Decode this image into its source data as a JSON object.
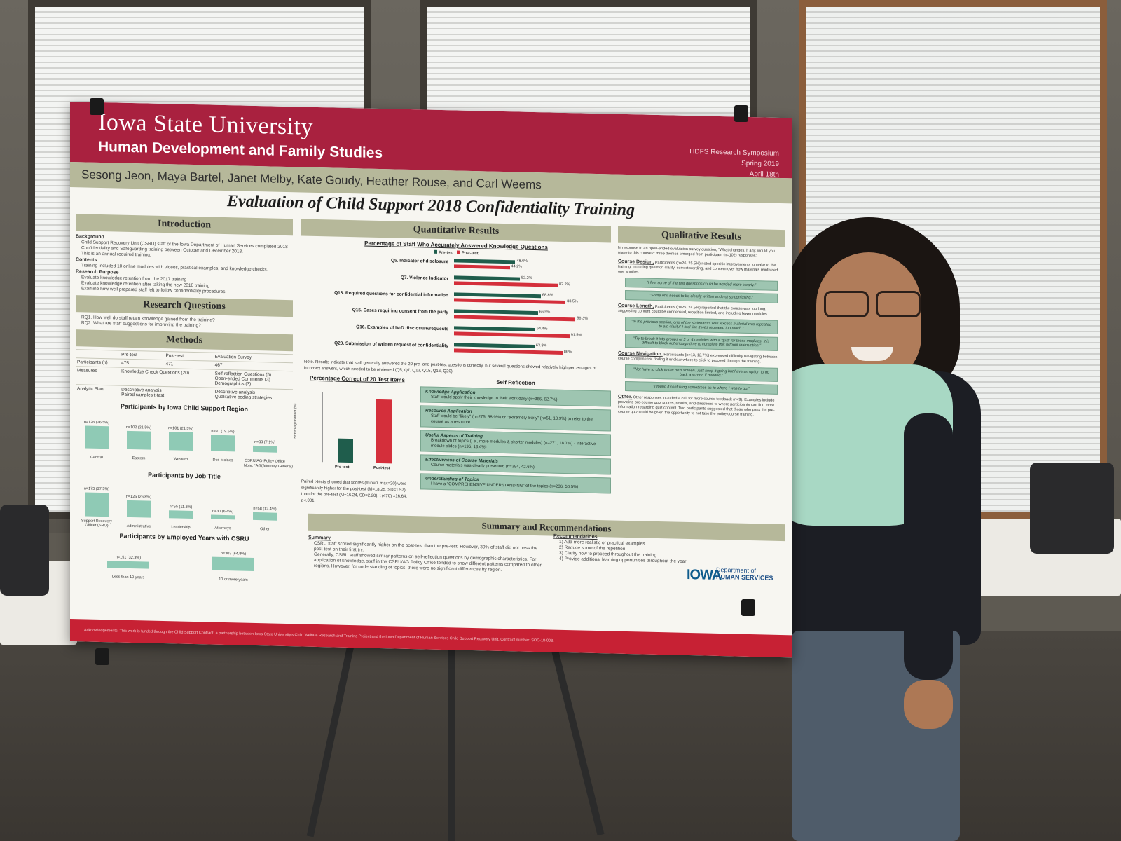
{
  "poster": {
    "university": "Iowa State University",
    "department": "Human Development and Family Studies",
    "event": [
      "HDFS Research Symposium",
      "Spring 2019",
      "April 18th"
    ],
    "authors": "Sesong Jeon, Maya Bartel, Janet Melby, Kate Goudy, Heather Rouse, and Carl Weems",
    "title": "Evaluation of Child Support 2018 Confidentiality Training",
    "introduction": {
      "heading": "Introduction",
      "background_label": "Background",
      "background": [
        "Child Support Recovery Unit (CSRU) staff of the Iowa Department of Human Services completed 2018 Confidentiality and Safeguarding training between October and December 2018.",
        "This is an annual required training."
      ],
      "contents_label": "Contents",
      "contents": [
        "Training included 10 online modules with videos, practical examples, and knowledge checks."
      ],
      "purpose_label": "Research Purpose",
      "purpose": [
        "Evaluate knowledge retention from the 2017 training",
        "Evaluate knowledge retention after taking the new 2018 training",
        "Examine how well prepared staff felt to follow confidentiality procedures"
      ]
    },
    "research_questions": {
      "heading": "Research Questions",
      "rq1": "RQ1. How well do staff retain knowledge gained from the training?",
      "rq2": "RQ2. What are staff suggestions for improving the training?"
    },
    "methods": {
      "heading": "Methods",
      "cols": [
        "Pre-test",
        "Post-test",
        "Evaluation Survey"
      ],
      "participants_label": "Participants (n)",
      "participants": [
        "475",
        "471",
        "467"
      ],
      "measures_label": "Measures",
      "measures_a": "Knowledge Check Questions (20)",
      "measures_b": [
        "Self-reflection Questions (5)",
        "Open-ended Comments (3)",
        "Demographics (3)"
      ],
      "plan_label": "Analytic Plan",
      "plan_a": [
        "Descriptive analysis",
        "Paired samples t-test"
      ],
      "plan_b": [
        "Descriptive analysis",
        "Qualitative coding strategies"
      ]
    },
    "region": {
      "heading": "Participants by Iowa Child Support Region",
      "note": "Note. *AG(Attorney General)",
      "bars": [
        {
          "label": "Central",
          "value": "n=126 (26.5%)",
          "pct": 26.5
        },
        {
          "label": "Eastern",
          "value": "n=102 (21.5%)",
          "pct": 21.5
        },
        {
          "label": "Western",
          "value": "n=101 (21.3%)",
          "pct": 21.3
        },
        {
          "label": "Des Moines",
          "value": "n=91 (19.5%)",
          "pct": 19.5
        },
        {
          "label": "CSRU/AG*Policy Office",
          "value": "n=33 (7.1%)",
          "pct": 7.1
        }
      ]
    },
    "job": {
      "heading": "Participants by Job Title",
      "bars": [
        {
          "label": "Support Recovery Officer (SRO)",
          "value": "n=175 (37.5%)",
          "pct": 37.5
        },
        {
          "label": "Administrative",
          "value": "n=125 (26.8%)",
          "pct": 26.8
        },
        {
          "label": "Leadership",
          "value": "n=55 (11.8%)",
          "pct": 11.8
        },
        {
          "label": "Attorneys",
          "value": "n=30 (6.4%)",
          "pct": 6.4
        },
        {
          "label": "Other",
          "value": "n=58 (12.4%)",
          "pct": 12.4
        }
      ]
    },
    "years": {
      "heading": "Participants by Employed Years with CSRU",
      "bars": [
        {
          "label": "Less than 10 years",
          "value": "n=151 (32.3%)",
          "pct": 32.3
        },
        {
          "label": "10 or more years",
          "value": "n=303 (64.9%)",
          "pct": 64.9
        }
      ]
    },
    "quant": {
      "heading": "Quantitative Results",
      "chart_title": "Percentage of Staff Who Accurately Answered Knowledge Questions",
      "legend_pre": "Pre-test",
      "legend_post": "Post-test",
      "note": "Note. Results indicate that staff generally answered the 20 pre- and post-test questions correctly, but several questions showed relatively high percentages of incorrect answers, which needed to be reviewed (Q5, Q7, Q13, Q15, Q16, Q20).",
      "test_chart_title": "Percentage Correct of 20 Test Items",
      "test_ylabel": "Percentage correct (%)",
      "test_cats": [
        "Pre-test",
        "Post-test"
      ],
      "ttest": "Paired t-tests showed that scores (min=0, max=20) were significantly higher for the post-test (M=18.25, SD=1.57) than for the pre-test (M=16.24, SD=2.20), t (470) =16.64, p<.001."
    },
    "self_reflection": {
      "heading": "Self Reflection",
      "boxes": [
        {
          "title": "Knowledge Application",
          "text": "Staff would apply their knowledge to their work daily (n=386, 82.7%)"
        },
        {
          "title": "Resource Application",
          "text": "Staff would be \"likely\" (n=275, 58.9%) or \"extremely likely\" (n=51, 10.9%) to refer to the course as a resource"
        },
        {
          "title": "Useful Aspects of Training",
          "text": "Breakdown of topics (i.e., more modules & shorter modules) (n=271, 18.7%) · Interactive module slides (n=195, 13.4%)"
        },
        {
          "title": "Effectiveness of Course Materials",
          "text": "Course materials was clearly presented (n=394, 42.6%)"
        },
        {
          "title": "Understanding of Topics",
          "text": "I have a \"COMPREHENSIVE UNDERSTANDING\" of the topics (n=236, 50.5%)"
        }
      ]
    },
    "qual": {
      "heading": "Qualitative Results",
      "intro": "In response to an open-ended evaluation survey question, \"What changes, if any, would you make to this course?\" three themes emerged from participant (n=102) responses:",
      "design_label": "Course Design.",
      "design": "Participants (n=26, 25.5%) noted specific improvements to make to the training, including question clarity, correct wording, and concern over how materials reinforced one another.",
      "q1": "\"I feel some of the test questions could be worded more clearly.\"",
      "q2": "\"Some of it needs to be clearly written and not so confusing.\"",
      "length_label": "Course Length.",
      "length": "Participants (n=25, 24.5%) reported that the course was too long, suggesting content could be condensed, repetition limited, and including fewer modules.",
      "q3": "\"In the previous section, one of the statements was 'excess material was repeated to aid clarity.' I feel like it was repeated too much.\"",
      "q4": "\"Try to break it into groups of 3 or 4 modules with a 'quiz' for those modules. It is difficult to block out enough time to complete this without interruption.\"",
      "nav_label": "Course Navigation.",
      "nav": "Participants (n=13, 12.7%) expressed difficulty navigating between course components, finding it unclear where to click to proceed through the training.",
      "q5": "\"Not have to click to the next screen. Just keep it going but have an option to go back a screen if needed.\"",
      "q6": "\"I found it confusing sometimes as to where I was to go.\"",
      "other_label": "Other.",
      "other": "Other responses included a call for more course feedback (n=9). Examples include providing pre-course quiz scores, results, and directions to where participants can find more information regarding quiz content. Two participants suggested that those who pass the pre-course quiz could be given the opportunity to not take the entire course training."
    },
    "summary": {
      "heading": "Summary and Recommendations",
      "summary_label": "Summary",
      "s1": "CSRU staff scored significantly higher on the post-test than the pre-test. However, 30% of staff did not pass the post-test on their first try.",
      "s2": "Generally, CSRU staff showed similar patterns on self-reflection questions by demographic characteristics. For application of knowledge, staff in the CSRU/AG Policy Office tended to show different patterns compared to other regions. However, for understanding of topics, there were no significant differences by region.",
      "rec_label": "Recommendations",
      "recs": [
        "1) Add more realistic or practical examples",
        "2) Reduce some of the repetition",
        "3) Clarify how to proceed throughout the training",
        "4) Provide additional learning opportunities throughout the year"
      ]
    },
    "ids_logo": {
      "mark": "IOWA",
      "line1": "Department of",
      "line2": "HUMAN SERVICES"
    },
    "footer": "Acknowledgements: This work is funded through the Child Support Contract, a partnership between Iowa State University's Child Welfare Research and Training Project and the Iowa Department of Human Services Child Support Recovery Unit. Contract number: SOC-18-003."
  },
  "chart_data": [
    {
      "type": "bar",
      "title": "Percentage of Staff Who Accurately Answered Knowledge Questions",
      "categories": [
        "Q5. Indicator of disclosure",
        "Q7. Violence Indicator",
        "Q13. Required questions for confidential information",
        "Q15. Cases requiring consent from the party",
        "Q16. Examples of IV-D disclosure/requests",
        "Q20. Submission of written request of confidentiality"
      ],
      "series": [
        {
          "name": "Pre-test",
          "values": [
            48.6,
            52.2,
            68.8,
            66.5,
            64.4,
            63.8
          ],
          "labels": [
            "48.6%",
            "52.2%",
            "68.8%",
            "66.5%",
            "64.4%",
            "63.8%"
          ]
        },
        {
          "name": "Post-test",
          "values": [
            44.2,
            82.2,
            88.5,
            96.3,
            91.5,
            86
          ],
          "labels": [
            "44.2%",
            "82.2%",
            "88.5%",
            "96.3%",
            "91.5%",
            "86%"
          ]
        }
      ],
      "colors": {
        "pre": "#1f5d4c",
        "post": "#d42f3b"
      },
      "xlim": [
        0,
        100
      ],
      "legend": "top"
    },
    {
      "type": "bar",
      "title": "Percentage Correct of 20 Test Items",
      "categories": [
        "Pre-test",
        "Post-test"
      ],
      "values": [
        81.2,
        91.3
      ],
      "ylabel": "Percentage correct (%)",
      "ylim": [
        75,
        93
      ]
    }
  ]
}
